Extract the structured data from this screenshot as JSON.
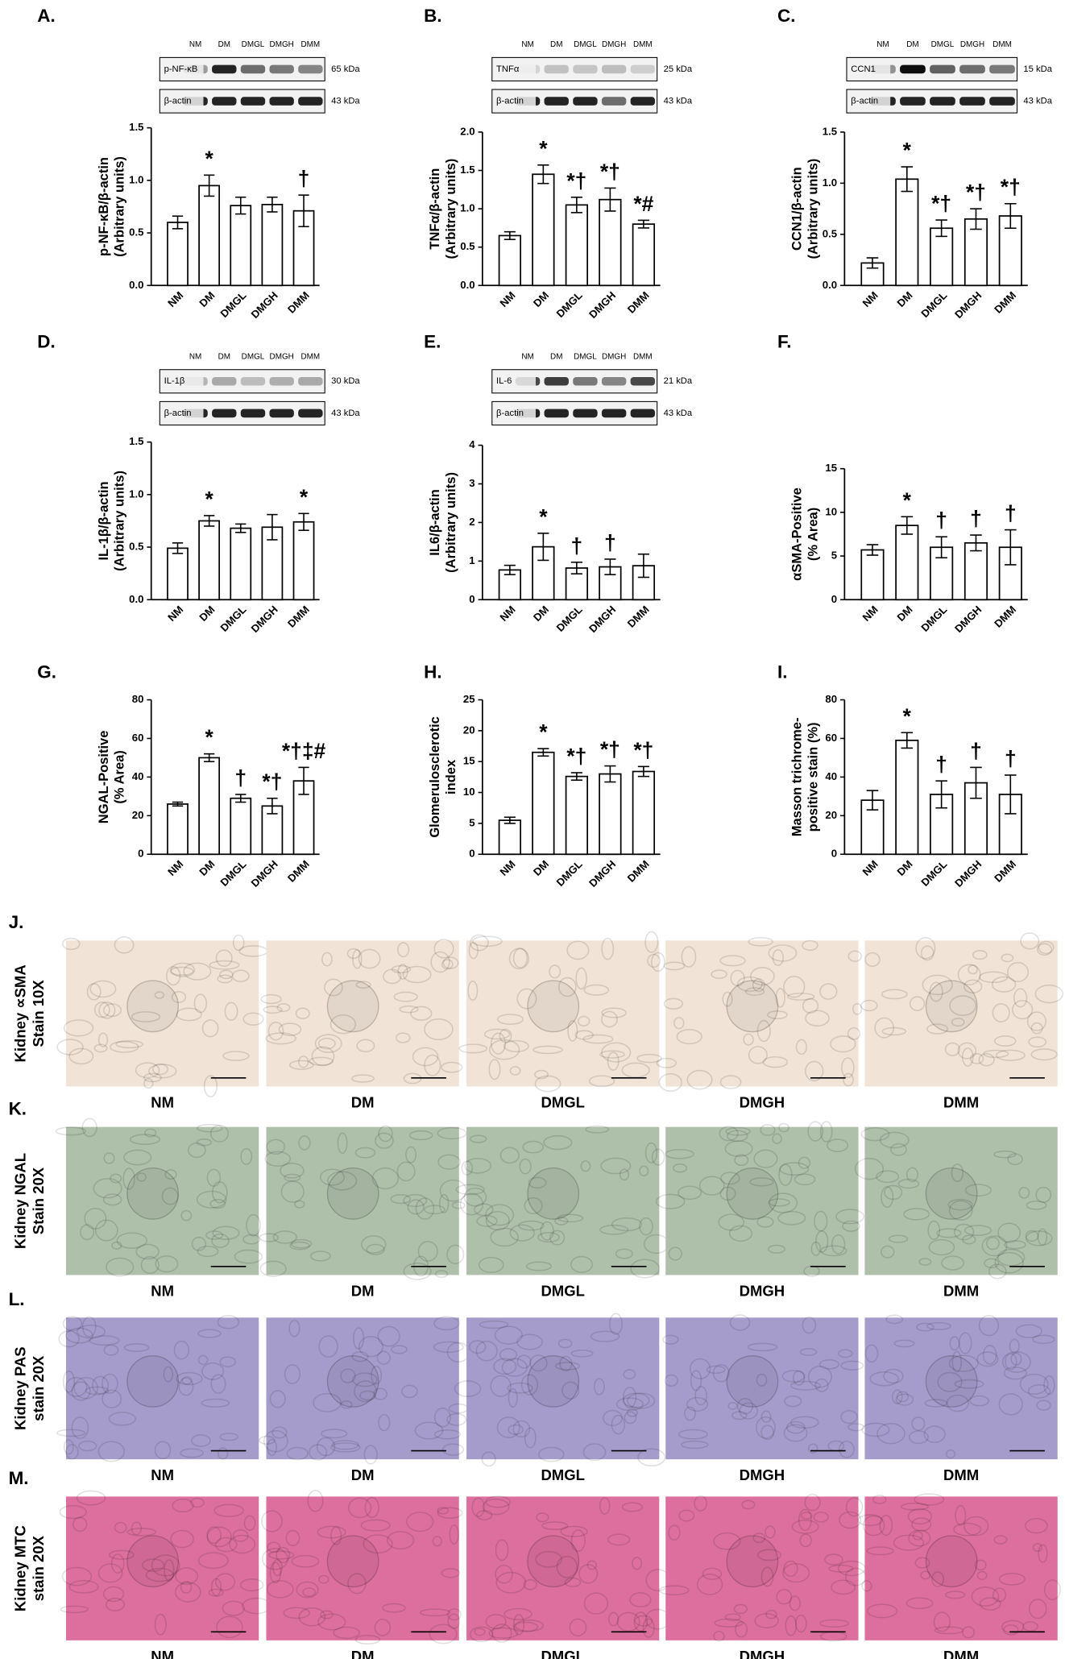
{
  "chart_data": [
    {
      "type": "bar",
      "panel": "A.",
      "ylabel": [
        "p-NF-κB/β-actin",
        "(Arbitrary units)"
      ],
      "categories": [
        "NM",
        "DM",
        "DMGL",
        "DMGH",
        "DMM"
      ],
      "values": [
        0.6,
        0.95,
        0.76,
        0.77,
        0.71
      ],
      "errors": [
        0.06,
        0.1,
        0.08,
        0.07,
        0.15
      ],
      "annotations": [
        null,
        "*",
        null,
        null,
        "†"
      ],
      "ylim": [
        0,
        1.5
      ],
      "yticks": [
        {
          "value": 0,
          "label": "0.0"
        },
        0.5,
        {
          "value": 1,
          "label": "1.0"
        },
        1.5
      ],
      "color": "#ffffff"
    },
    {
      "type": "bar",
      "panel": "B.",
      "ylabel": [
        "TNFα/β-actin",
        "(Arbitrary units)"
      ],
      "categories": [
        "NM",
        "DM",
        "DMGL",
        "DMGH",
        "DMM"
      ],
      "values": [
        0.65,
        1.45,
        1.05,
        1.12,
        0.8
      ],
      "errors": [
        0.05,
        0.12,
        0.1,
        0.15,
        0.05
      ],
      "annotations": [
        null,
        "*",
        "*†",
        "*†",
        "*#"
      ],
      "ylim": [
        0,
        2
      ],
      "yticks": [
        {
          "value": 0,
          "label": "0.0"
        },
        0.5,
        {
          "value": 1,
          "label": "1.0"
        },
        1.5,
        {
          "value": 2,
          "label": "2.0"
        }
      ],
      "color": "#ffffff"
    },
    {
      "type": "bar",
      "panel": "C.",
      "ylabel": [
        "CCN1/β-actin",
        "(Arbitrary units)"
      ],
      "categories": [
        "NM",
        "DM",
        "DMGL",
        "DMGH",
        "DMM"
      ],
      "values": [
        0.22,
        1.04,
        0.56,
        0.65,
        0.68
      ],
      "errors": [
        0.05,
        0.12,
        0.08,
        0.1,
        0.12
      ],
      "annotations": [
        null,
        "*",
        "*†",
        "*†",
        "*†"
      ],
      "ylim": [
        0,
        1.5
      ],
      "yticks": [
        {
          "value": 0,
          "label": "0.0"
        },
        0.5,
        {
          "value": 1,
          "label": "1.0"
        },
        1.5
      ],
      "color": "#ffffff"
    },
    {
      "type": "bar",
      "panel": "D.",
      "ylabel": [
        "IL-1β/β-actin",
        "(Arbitrary units)"
      ],
      "categories": [
        "NM",
        "DM",
        "DMGL",
        "DMGH",
        "DMM"
      ],
      "values": [
        0.49,
        0.75,
        0.68,
        0.69,
        0.74
      ],
      "errors": [
        0.05,
        0.05,
        0.04,
        0.12,
        0.08
      ],
      "annotations": [
        null,
        "*",
        null,
        null,
        "*"
      ],
      "ylim": [
        0,
        1.5
      ],
      "yticks": [
        {
          "value": 0,
          "label": "0.0"
        },
        0.5,
        {
          "value": 1,
          "label": "1.0"
        },
        1.5
      ],
      "color": "#ffffff"
    },
    {
      "type": "bar",
      "panel": "E.",
      "ylabel": [
        "IL6/β-actin",
        "(Arbitrary units)"
      ],
      "categories": [
        "NM",
        "DM",
        "DMGL",
        "DMGH",
        "DMM"
      ],
      "values": [
        0.77,
        1.37,
        0.82,
        0.85,
        0.88
      ],
      "errors": [
        0.12,
        0.35,
        0.15,
        0.2,
        0.3
      ],
      "annotations": [
        null,
        "*",
        "†",
        "†",
        null
      ],
      "ylim": [
        0,
        4
      ],
      "yticks": [
        0,
        1,
        2,
        3,
        4
      ],
      "color": "#ffffff"
    },
    {
      "type": "bar",
      "panel": "F.",
      "ylabel": [
        "αSMA-Positive",
        "(% Area)"
      ],
      "categories": [
        "NM",
        "DM",
        "DMGL",
        "DMGH",
        "DMM"
      ],
      "values": [
        5.7,
        8.5,
        6.0,
        6.5,
        6.0
      ],
      "errors": [
        0.6,
        1.0,
        1.2,
        0.9,
        2.0
      ],
      "annotations": [
        null,
        "*",
        "†",
        "†",
        "†"
      ],
      "ylim": [
        0,
        15
      ],
      "yticks": [
        0,
        5,
        10,
        15
      ],
      "color": "#ffffff"
    },
    {
      "type": "bar",
      "panel": "G.",
      "ylabel": [
        "NGAL-Positive",
        "(% Area)"
      ],
      "categories": [
        "NM",
        "DM",
        "DMGL",
        "DMGH",
        "DMM"
      ],
      "values": [
        26,
        50,
        29,
        25,
        38
      ],
      "errors": [
        1,
        2,
        2,
        4,
        7
      ],
      "annotations": [
        null,
        "*",
        "†",
        "*†",
        "*†‡#"
      ],
      "ylim": [
        0,
        80
      ],
      "yticks": [
        0,
        20,
        40,
        60,
        80
      ],
      "color": "#ffffff"
    },
    {
      "type": "bar",
      "panel": "H.",
      "ylabel": [
        "Glomerulosclerotic",
        "index"
      ],
      "categories": [
        "NM",
        "DM",
        "DMGL",
        "DMGH",
        "DMM"
      ],
      "values": [
        5.5,
        16.5,
        12.6,
        13.0,
        13.4
      ],
      "errors": [
        0.5,
        0.6,
        0.6,
        1.3,
        0.8
      ],
      "annotations": [
        null,
        "*",
        "*†",
        "*†",
        "*†"
      ],
      "ylim": [
        0,
        25
      ],
      "yticks": [
        0,
        5,
        10,
        15,
        20,
        25
      ],
      "color": "#ffffff"
    },
    {
      "type": "bar",
      "panel": "I.",
      "ylabel": [
        "Masson trichrome-",
        "positive stain (%)"
      ],
      "categories": [
        "NM",
        "DM",
        "DMGL",
        "DMGH",
        "DMM"
      ],
      "values": [
        28,
        59,
        31,
        37,
        31
      ],
      "errors": [
        5,
        4,
        7,
        8,
        10
      ],
      "annotations": [
        null,
        "*",
        "†",
        "†",
        "†"
      ],
      "ylim": [
        0,
        80
      ],
      "yticks": [
        0,
        20,
        40,
        60,
        80
      ],
      "color": "#ffffff"
    }
  ],
  "blots": [
    {
      "lanes": [
        "NM",
        "DM",
        "DMGL",
        "DMGH",
        "DMM"
      ],
      "rows": [
        {
          "protein": "p-NF-κB",
          "size": "65 kDa"
        },
        {
          "protein": "β-actin",
          "size": "43 kDa"
        }
      ]
    },
    {
      "lanes": [
        "NM",
        "DM",
        "DMGL",
        "DMGH",
        "DMM"
      ],
      "rows": [
        {
          "protein": "TNFα",
          "size": "25 kDa"
        },
        {
          "protein": "β-actin",
          "size": "43 kDa"
        }
      ]
    },
    {
      "lanes": [
        "NM",
        "DM",
        "DMGL",
        "DMGH",
        "DMM"
      ],
      "rows": [
        {
          "protein": "CCN1",
          "size": "15 kDa"
        },
        {
          "protein": "β-actin",
          "size": "43 kDa"
        }
      ]
    },
    {
      "lanes": [
        "NM",
        "DM",
        "DMGL",
        "DMGH",
        "DMM"
      ],
      "rows": [
        {
          "protein": "IL-1β",
          "size": "30 kDa"
        },
        {
          "protein": "β-actin",
          "size": "43 kDa"
        }
      ]
    },
    {
      "lanes": [
        "NM",
        "DM",
        "DMGL",
        "DMGH",
        "DMM"
      ],
      "rows": [
        {
          "protein": "IL-6",
          "size": "21 kDa"
        },
        {
          "protein": "β-actin",
          "size": "43 kDa"
        }
      ]
    }
  ],
  "histology": {
    "columns": [
      "NM",
      "DM",
      "DMGL",
      "DMGH",
      "DMM"
    ],
    "rows": [
      {
        "panel": "J.",
        "label": [
          "Kidney ∝SMA",
          "Stain 10X"
        ],
        "color": "#f1e3d6"
      },
      {
        "panel": "K.",
        "label": [
          "Kidney NGAL",
          "Stain 20X"
        ],
        "color": "#aebfaa"
      },
      {
        "panel": "L.",
        "label": [
          "Kidney PAS",
          "stain 20X"
        ],
        "color": "#a69ccc"
      },
      {
        "panel": "M.",
        "label": [
          "Kidney MTC",
          "stain 20X"
        ],
        "color": "#dc6f9e"
      }
    ]
  }
}
